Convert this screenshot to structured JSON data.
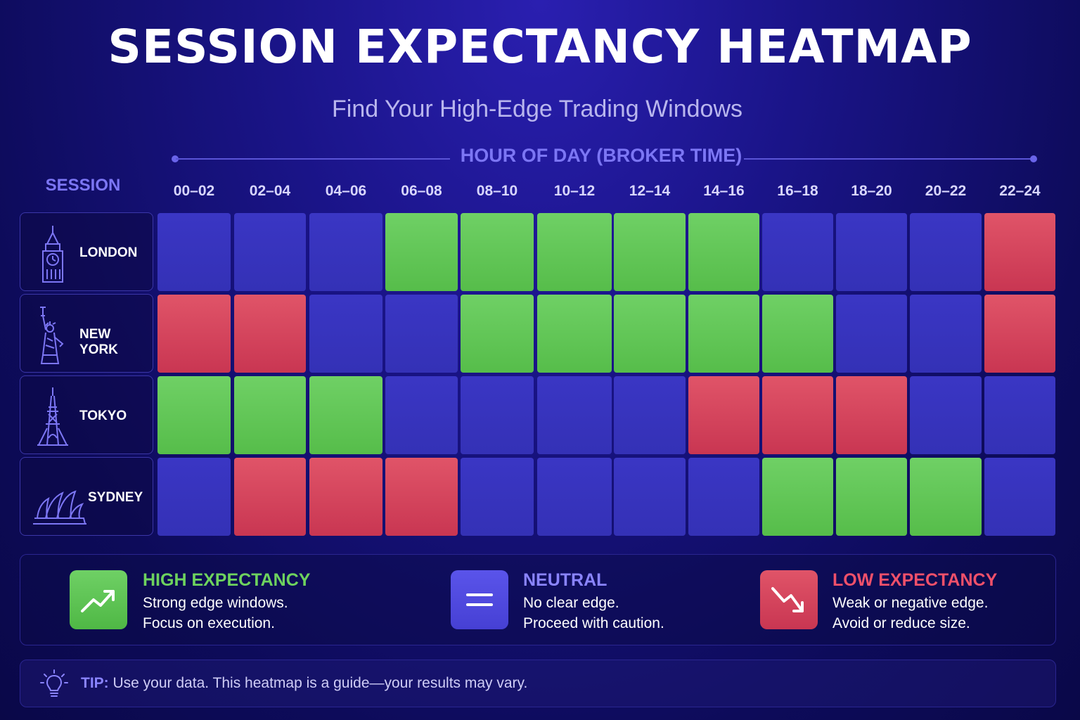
{
  "title": "SESSION EXPECTANCY HEATMAP",
  "subtitle": "Find Your High-Edge Trading Windows",
  "colors": {
    "high": "#62C657",
    "neutral": "#3733BE",
    "low": "#D5435C",
    "accent": "#7C76F4",
    "background": "#12107A"
  },
  "chart_data": {
    "type": "heatmap",
    "xlabel": "HOUR OF DAY (BROKER TIME)",
    "ylabel": "SESSION",
    "x": [
      "00–02",
      "02–04",
      "04–06",
      "06–08",
      "08–10",
      "10–12",
      "12–14",
      "14–16",
      "16–18",
      "18–20",
      "20–22",
      "22–24"
    ],
    "y": [
      "LONDON",
      "NEW YORK",
      "TOKYO",
      "SYDNEY"
    ],
    "values": [
      [
        "neutral",
        "neutral",
        "neutral",
        "high",
        "high",
        "high",
        "high",
        "high",
        "neutral",
        "neutral",
        "neutral",
        "low"
      ],
      [
        "low",
        "low",
        "neutral",
        "neutral",
        "high",
        "high",
        "high",
        "high",
        "high",
        "neutral",
        "neutral",
        "low"
      ],
      [
        "high",
        "high",
        "high",
        "neutral",
        "neutral",
        "neutral",
        "neutral",
        "low",
        "low",
        "low",
        "neutral",
        "neutral"
      ],
      [
        "neutral",
        "low",
        "low",
        "low",
        "neutral",
        "neutral",
        "neutral",
        "neutral",
        "high",
        "high",
        "high",
        "neutral"
      ]
    ],
    "row_icons": [
      "big-ben-icon",
      "statue-of-liberty-icon",
      "tokyo-tower-icon",
      "sydney-opera-house-icon"
    ],
    "legend": [
      {
        "key": "high",
        "title": "HIGH EXPECTANCY",
        "line1": "Strong edge windows.",
        "line2": "Focus on execution.",
        "icon": "trend-up-icon"
      },
      {
        "key": "neutral",
        "title": "NEUTRAL",
        "line1": "No clear edge.",
        "line2": "Proceed with caution.",
        "icon": "equals-icon"
      },
      {
        "key": "low",
        "title": "LOW EXPECTANCY",
        "line1": "Weak or negative edge.",
        "line2": "Avoid or reduce size.",
        "icon": "trend-down-icon"
      }
    ]
  },
  "tip": {
    "label": "TIP:",
    "text": " Use your data. This heatmap is a guide—your results may vary.",
    "icon": "lightbulb-icon"
  }
}
